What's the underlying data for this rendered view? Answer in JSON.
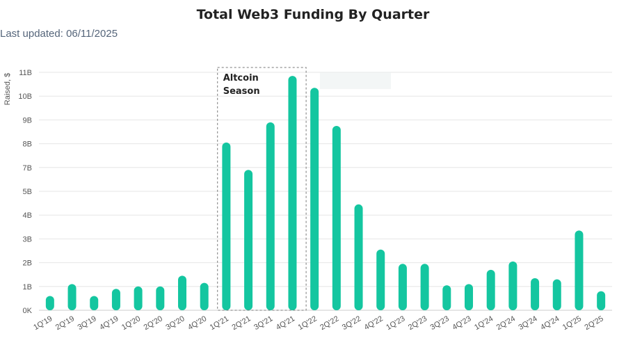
{
  "chart_data": {
    "type": "bar",
    "title": "Total Web3 Funding By Quarter",
    "subtitle": "Last updated: 06/11/2025",
    "ylabel": "Raised, $",
    "xlabel": "",
    "y_tick_labels": [
      "0K",
      "1B",
      "2B",
      "3B",
      "4B",
      "5B",
      "7B",
      "8B",
      "9B",
      "10B",
      "11B"
    ],
    "ylim": [
      0,
      10
    ],
    "grid": true,
    "bar_color": "#14c6a0",
    "categories": [
      "1Q'19",
      "2Q'19",
      "3Q'19",
      "4Q'19",
      "1Q'20",
      "2Q'20",
      "3Q'20",
      "4Q'20",
      "1Q'21",
      "2Q'21",
      "3Q'21",
      "4Q'21",
      "1Q'22",
      "2Q'22",
      "3Q'22",
      "4Q'22",
      "1Q'23",
      "2Q'23",
      "3Q'23",
      "4Q'23",
      "1Q'24",
      "2Q'24",
      "3Q'24",
      "4Q'24",
      "1Q'25",
      "2Q'25"
    ],
    "values": [
      0.6,
      1.1,
      0.6,
      0.9,
      1.0,
      1.0,
      1.45,
      1.15,
      7.05,
      5.9,
      7.9,
      9.85,
      9.35,
      7.75,
      4.45,
      2.55,
      1.95,
      1.95,
      1.05,
      1.1,
      1.7,
      2.05,
      1.35,
      1.3,
      3.35,
      0.8
    ],
    "annotation": {
      "label_line1": "Altcoin",
      "label_line2": "Season",
      "from_category": "1Q'21",
      "to_category": "4Q'21"
    }
  }
}
